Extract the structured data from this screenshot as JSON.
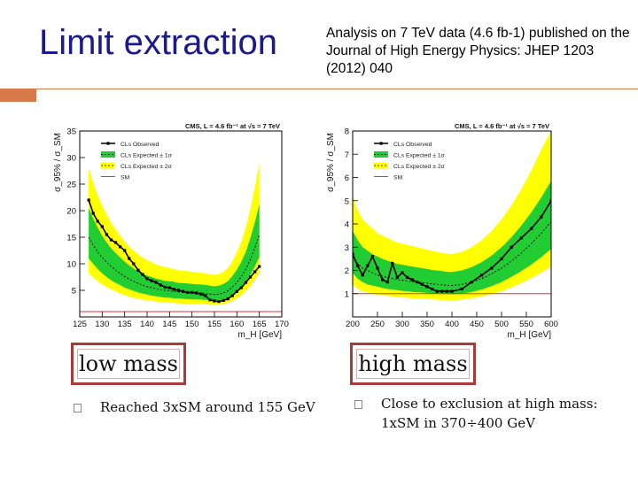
{
  "slide": {
    "title": "Limit extraction",
    "citation": "Analysis on 7 TeV data (4.6 fb-1) published on the Journal of High Energy Physics: JHEP 1203 (2012) 040"
  },
  "left_box": {
    "label": "low mass"
  },
  "right_box": {
    "label": "high mass"
  },
  "left_bullet": {
    "text": "Reached 3xSM around 155 GeV"
  },
  "right_bullet": {
    "line1": "Close to exclusion at high mass:",
    "line2": "1xSM in 370÷400 GeV"
  },
  "chart_data": [
    {
      "type": "line",
      "title": "CMS, L = 4.6 fb⁻¹ at √s = 7 TeV",
      "xlabel": "m_H [GeV]",
      "ylabel": "σ_95% / σ_SM",
      "xlim": [
        125,
        170
      ],
      "ylim": [
        0,
        35
      ],
      "xticks": [
        "125",
        "130",
        "135",
        "140",
        "145",
        "150",
        "155",
        "160",
        "165",
        "170"
      ],
      "yticks": [
        "5",
        "10",
        "15",
        "20",
        "25",
        "30",
        "35"
      ],
      "legend": [
        "CLs Observed",
        "CLs Expected ± 1σ",
        "CLs Expected ± 2σ",
        "SM"
      ],
      "legend_position": "top-left",
      "x": [
        127,
        128,
        129,
        130,
        131,
        132,
        133,
        134,
        135,
        136,
        137,
        138,
        139,
        140,
        141,
        142,
        143,
        144,
        145,
        146,
        147,
        148,
        149,
        150,
        151,
        152,
        153,
        154,
        155,
        156,
        157,
        158,
        159,
        160,
        161,
        162,
        163,
        164,
        165
      ],
      "observed": [
        22,
        19.5,
        18,
        17,
        15.5,
        14.5,
        14,
        13.2,
        12.5,
        11,
        10,
        8.8,
        8,
        7.2,
        6.8,
        6.5,
        6,
        5.6,
        5.5,
        5.2,
        5,
        4.8,
        4.6,
        4.6,
        4.5,
        4.3,
        4,
        3.2,
        3,
        2.9,
        3.1,
        3.4,
        4,
        4.8,
        5.5,
        6.5,
        7.5,
        8.5,
        9.5
      ],
      "expected": [
        15,
        13.5,
        12.2,
        11.2,
        10.3,
        9.5,
        8.8,
        8.2,
        7.6,
        7.1,
        6.7,
        6.3,
        6,
        5.7,
        5.5,
        5.3,
        5.1,
        5,
        4.9,
        4.8,
        4.7,
        4.65,
        4.6,
        4.55,
        4.5,
        4.45,
        4.4,
        4.3,
        4.2,
        4.3,
        4.5,
        4.9,
        5.6,
        6.5,
        7.6,
        9,
        10.8,
        13,
        15.5
      ],
      "band1_low": [
        11,
        10,
        9,
        8.2,
        7.5,
        6.9,
        6.4,
        6,
        5.5,
        5.2,
        4.9,
        4.6,
        4.4,
        4.2,
        4,
        3.9,
        3.75,
        3.65,
        3.6,
        3.5,
        3.45,
        3.4,
        3.35,
        3.3,
        3.3,
        3.25,
        3.2,
        3.15,
        3.1,
        3.15,
        3.3,
        3.6,
        4.1,
        4.8,
        5.6,
        6.6,
        7.9,
        9.5,
        11.3
      ],
      "band1_high": [
        20.5,
        18.5,
        16.8,
        15.3,
        14,
        12.9,
        12,
        11.2,
        10.4,
        9.7,
        9.1,
        8.6,
        8.2,
        7.8,
        7.5,
        7.2,
        7,
        6.8,
        6.7,
        6.6,
        6.4,
        6.35,
        6.3,
        6.2,
        6.15,
        6.1,
        6,
        5.9,
        5.75,
        5.9,
        6.2,
        6.7,
        7.7,
        8.9,
        10.4,
        12.3,
        14.8,
        17.8,
        21.2
      ],
      "band2_low": [
        8.2,
        7.4,
        6.7,
        6.1,
        5.6,
        5.2,
        4.8,
        4.4,
        4.1,
        3.8,
        3.6,
        3.4,
        3.25,
        3.1,
        3,
        2.9,
        2.8,
        2.7,
        2.65,
        2.6,
        2.55,
        2.5,
        2.5,
        2.45,
        2.45,
        2.4,
        2.35,
        2.3,
        2.25,
        2.3,
        2.4,
        2.65,
        3,
        3.5,
        4.1,
        4.9,
        5.8,
        7,
        8.3
      ],
      "band2_high": [
        28,
        25.3,
        22.9,
        21,
        19.3,
        17.7,
        16.5,
        15.3,
        14.2,
        13.3,
        12.5,
        11.8,
        11.2,
        10.7,
        10.3,
        9.9,
        9.6,
        9.4,
        9.2,
        9,
        8.8,
        8.7,
        8.6,
        8.5,
        8.4,
        8.3,
        8.2,
        8,
        7.9,
        8.1,
        8.5,
        9.2,
        10.5,
        12.2,
        14.2,
        16.9,
        20.3,
        24.4,
        29
      ],
      "sm": 1
    },
    {
      "type": "line",
      "title": "CMS, L = 4.6 fb⁻¹ at √s = 7 TeV",
      "xlabel": "m_H [GeV]",
      "ylabel": "σ_95% / σ_SM",
      "xlim": [
        200,
        600
      ],
      "ylim": [
        0,
        8
      ],
      "xticks": [
        "200",
        "250",
        "300",
        "350",
        "400",
        "450",
        "500",
        "550",
        "600"
      ],
      "yticks": [
        "1",
        "2",
        "3",
        "4",
        "5",
        "6",
        "7",
        "8"
      ],
      "legend": [
        "CLs Observed",
        "CLs Expected ± 1σ",
        "CLs Expected ± 2σ",
        "SM"
      ],
      "legend_position": "top-left",
      "x": [
        200,
        210,
        220,
        230,
        240,
        250,
        260,
        270,
        280,
        290,
        300,
        310,
        320,
        330,
        340,
        350,
        360,
        370,
        380,
        390,
        400,
        420,
        440,
        460,
        480,
        500,
        520,
        540,
        560,
        580,
        600
      ],
      "observed": [
        2.7,
        2.2,
        1.8,
        2.2,
        2.6,
        2.1,
        1.6,
        1.5,
        2.3,
        1.7,
        1.9,
        1.7,
        1.6,
        1.5,
        1.4,
        1.3,
        1.2,
        1.1,
        1.1,
        1.1,
        1.1,
        1.2,
        1.5,
        1.8,
        2.1,
        2.5,
        3,
        3.4,
        3.8,
        4.3,
        5
      ],
      "expected": [
        2.6,
        2.3,
        2.1,
        2,
        1.9,
        1.8,
        1.75,
        1.7,
        1.65,
        1.6,
        1.58,
        1.55,
        1.52,
        1.5,
        1.48,
        1.45,
        1.42,
        1.4,
        1.38,
        1.36,
        1.35,
        1.4,
        1.5,
        1.65,
        1.85,
        2.1,
        2.4,
        2.75,
        3.15,
        3.6,
        4.1
      ],
      "band1_low": [
        1.9,
        1.65,
        1.5,
        1.4,
        1.35,
        1.3,
        1.25,
        1.2,
        1.18,
        1.15,
        1.12,
        1.1,
        1.08,
        1.06,
        1.05,
        1.03,
        1.01,
        1,
        0.99,
        0.98,
        0.97,
        1,
        1.07,
        1.18,
        1.32,
        1.5,
        1.72,
        1.97,
        2.25,
        2.57,
        2.93
      ],
      "band1_high": [
        3.7,
        3.3,
        3,
        2.85,
        2.7,
        2.6,
        2.5,
        2.42,
        2.35,
        2.28,
        2.25,
        2.2,
        2.17,
        2.13,
        2.1,
        2.06,
        2.02,
        2,
        1.97,
        1.94,
        1.93,
        2,
        2.14,
        2.36,
        2.64,
        3,
        3.43,
        3.93,
        4.5,
        5.14,
        5.86
      ],
      "band2_low": [
        1.4,
        1.22,
        1.1,
        1.05,
        1,
        0.95,
        0.93,
        0.9,
        0.88,
        0.85,
        0.84,
        0.82,
        0.8,
        0.79,
        0.78,
        0.77,
        0.75,
        0.74,
        0.73,
        0.72,
        0.72,
        0.74,
        0.8,
        0.88,
        0.98,
        1.1,
        1.27,
        1.46,
        1.67,
        1.9,
        2.17
      ],
      "band2_high": [
        5.2,
        4.6,
        4.2,
        4,
        3.8,
        3.6,
        3.5,
        3.4,
        3.3,
        3.2,
        3.15,
        3.1,
        3.05,
        3,
        2.95,
        2.9,
        2.84,
        2.8,
        2.76,
        2.72,
        2.7,
        2.8,
        3,
        3.3,
        3.7,
        4.2,
        4.8,
        5.5,
        6.3,
        7.2,
        8
      ],
      "sm": 1
    }
  ]
}
